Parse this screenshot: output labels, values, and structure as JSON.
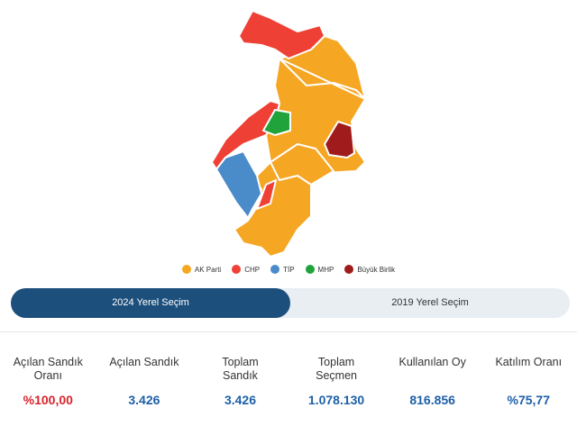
{
  "legend": [
    {
      "label": "AK Parti",
      "color": "#f5a623"
    },
    {
      "label": "CHP",
      "color": "#ee4035"
    },
    {
      "label": "TİP",
      "color": "#4a8bc9"
    },
    {
      "label": "MHP",
      "color": "#1fa33a"
    },
    {
      "label": "Büyük Birlik",
      "color": "#a01c1c"
    }
  ],
  "tabs": [
    "2024 Yerel Seçim",
    "2019 Yerel Seçim"
  ],
  "stats": [
    {
      "label": "Açılan Sandık Oranı",
      "value": "%100,00"
    },
    {
      "label": "Açılan Sandık",
      "value": "3.426"
    },
    {
      "label": "Toplam Sandık",
      "value": "3.426"
    },
    {
      "label": "Toplam Seçmen",
      "value": "1.078.130"
    },
    {
      "label": "Kullanılan Oy",
      "value": "816.856"
    },
    {
      "label": "Katılım Oranı",
      "value": "%75,77"
    }
  ]
}
